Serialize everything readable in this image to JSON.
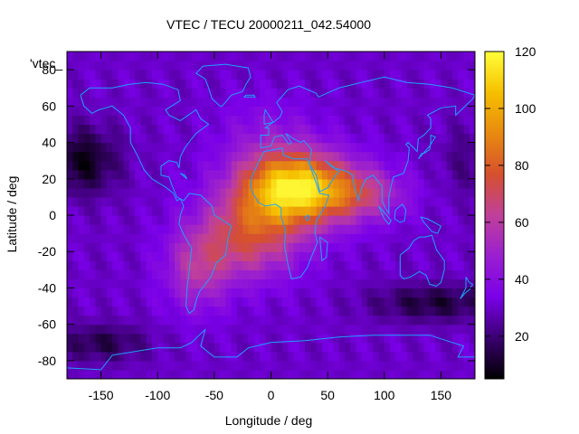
{
  "chart_data": {
    "type": "heatmap",
    "title": "VTEC / TECU 20000211_042.54000",
    "series_key_label": "'vtec_",
    "xlabel": "Longitude / deg",
    "ylabel": "Latitude / deg",
    "xlim": [
      -180,
      180
    ],
    "ylim": [
      -90,
      90
    ],
    "x_ticks": [
      -150,
      -100,
      -50,
      0,
      50,
      100,
      150
    ],
    "y_ticks": [
      -80,
      -60,
      -40,
      -20,
      0,
      20,
      40,
      60,
      80
    ],
    "colorbar": {
      "range": [
        5,
        120
      ],
      "ticks": [
        20,
        40,
        60,
        80,
        100,
        120
      ],
      "palette": [
        "#000000",
        "#3a0070",
        "#7a00e8",
        "#9a1fd0",
        "#c0409a",
        "#d6502e",
        "#e88a10",
        "#f6c000",
        "#ffff3a"
      ]
    },
    "field_features": {
      "background_vtec": 30,
      "peak_vtec": 118,
      "peak_location": [
        20,
        15
      ],
      "southern_crest_location": [
        -20,
        -12
      ],
      "high_latitude_minimum": 8
    },
    "coastline_color": "#1fa0ff"
  }
}
